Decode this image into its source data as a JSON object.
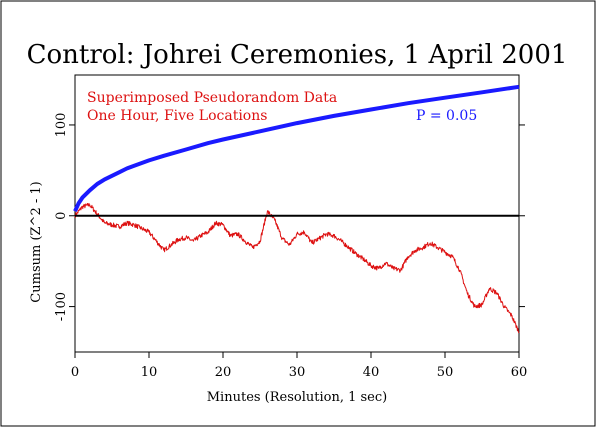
{
  "chart_data": {
    "type": "line",
    "title": "Control: Johrei Ceremonies, 1 April 2001",
    "xlabel": "Minutes (Resolution, 1 sec)",
    "ylabel": "Cumsum (Z^2 - 1)",
    "xlim": [
      0,
      60
    ],
    "ylim": [
      -150,
      155
    ],
    "x_ticks": [
      "0",
      "10",
      "20",
      "30",
      "40",
      "50",
      "60"
    ],
    "y_ticks": [
      "-100",
      "0",
      "100"
    ],
    "x_tick_values": [
      0,
      10,
      20,
      30,
      40,
      50,
      60
    ],
    "y_tick_values": [
      -100,
      0,
      100
    ],
    "annotations": [
      {
        "text": "Superimposed Pseudorandom Data",
        "color": "#dd1111"
      },
      {
        "text": "One Hour, Five Locations",
        "color": "#dd1111"
      },
      {
        "text": "P = 0.05",
        "color": "#1a1aff"
      }
    ],
    "series": [
      {
        "color": "#dd1111",
        "x": [
          0,
          1,
          2,
          3,
          4,
          5,
          6,
          7,
          8,
          9,
          10,
          11,
          12,
          13,
          14,
          15,
          16,
          17,
          18,
          19,
          20,
          21,
          22,
          23,
          24,
          25,
          26,
          27,
          28,
          29,
          30,
          31,
          32,
          33,
          34,
          35,
          36,
          37,
          38,
          39,
          40,
          41,
          42,
          43,
          44,
          45,
          46,
          47,
          48,
          49,
          50,
          51,
          52,
          53,
          54,
          55,
          56,
          57,
          58,
          59,
          60
        ],
        "values": [
          0,
          10,
          12,
          2,
          -8,
          -10,
          -12,
          -8,
          -10,
          -14,
          -18,
          -28,
          -38,
          -32,
          -26,
          -24,
          -28,
          -22,
          -18,
          -8,
          -10,
          -22,
          -20,
          -28,
          -35,
          -28,
          5,
          -5,
          -25,
          -32,
          -20,
          -18,
          -30,
          -25,
          -20,
          -22,
          -28,
          -35,
          -42,
          -48,
          -55,
          -58,
          -52,
          -58,
          -60,
          -45,
          -38,
          -35,
          -30,
          -35,
          -40,
          -45,
          -60,
          -85,
          -100,
          -98,
          -80,
          -85,
          -100,
          -110,
          -128
        ]
      },
      {
        "color": "#1a1aff",
        "x": [
          0,
          0.5,
          1,
          2,
          3,
          4,
          5,
          6,
          7,
          8,
          10,
          12,
          15,
          18,
          20,
          25,
          30,
          35,
          40,
          45,
          50,
          55,
          60
        ],
        "values": [
          5,
          14,
          20,
          28,
          35,
          40,
          44,
          48,
          52,
          55,
          61,
          66,
          73,
          80,
          84,
          93,
          102,
          110,
          117,
          124,
          130,
          136,
          142
        ]
      }
    ]
  }
}
